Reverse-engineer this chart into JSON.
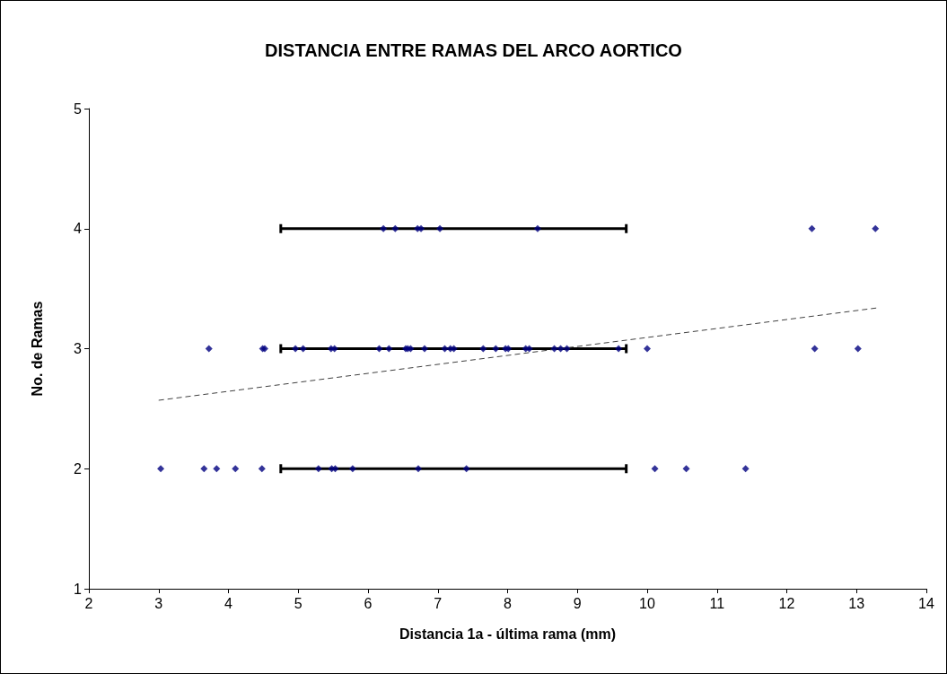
{
  "chart_data": {
    "type": "scatter",
    "title": "DISTANCIA ENTRE RAMAS DEL ARCO AORTICO",
    "xlabel": "Distancia 1a - última rama (mm)",
    "ylabel": "No. de Ramas",
    "xlim": [
      2,
      14
    ],
    "xticks": [
      2,
      3,
      4,
      5,
      6,
      7,
      8,
      9,
      10,
      11,
      12,
      13,
      14
    ],
    "ylim": [
      1,
      5
    ],
    "yticks": [
      1,
      2,
      3,
      4,
      5
    ],
    "marker": "diamond",
    "series": [
      {
        "color": "#000080",
        "x": [
          6.22,
          6.39,
          6.71,
          6.76,
          7.03,
          8.43,
          12.36,
          13.27
        ],
        "values": [
          4,
          4,
          4,
          4,
          4,
          4,
          4,
          4
        ],
        "xerrors": [
          null,
          null,
          null,
          null,
          [
            4.75,
            9.7
          ],
          null,
          null,
          null
        ]
      },
      {
        "color": "#000080",
        "x": [
          3.72,
          4.49,
          4.52,
          4.96,
          5.07,
          5.47,
          5.52,
          6.16,
          6.3,
          6.54,
          6.57,
          6.61,
          6.81,
          7.1,
          7.18,
          7.23,
          7.65,
          7.83,
          7.97,
          8.01,
          8.26,
          8.31,
          8.67,
          8.76,
          8.85,
          9.59,
          10.0,
          12.4,
          13.02
        ],
        "values": [
          3,
          3,
          3,
          3,
          3,
          3,
          3,
          3,
          3,
          3,
          3,
          3,
          3,
          3,
          3,
          3,
          3,
          3,
          3,
          3,
          3,
          3,
          3,
          3,
          3,
          3,
          3,
          3,
          3
        ],
        "xerrors": [
          null,
          null,
          null,
          null,
          null,
          null,
          null,
          null,
          null,
          null,
          null,
          null,
          null,
          null,
          null,
          [
            4.75,
            9.7
          ],
          null,
          null,
          null,
          null,
          null,
          null,
          null,
          null,
          null,
          null,
          null,
          null,
          null
        ]
      },
      {
        "color": "#000080",
        "x": [
          3.03,
          3.65,
          3.83,
          4.1,
          4.48,
          5.29,
          5.48,
          5.53,
          5.78,
          6.72,
          7.41,
          10.11,
          10.56,
          11.41
        ],
        "values": [
          2,
          2,
          2,
          2,
          2,
          2,
          2,
          2,
          2,
          2,
          2,
          2,
          2,
          2
        ],
        "xerrors": [
          null,
          null,
          null,
          null,
          null,
          null,
          null,
          null,
          null,
          [
            4.75,
            9.7
          ],
          null,
          null,
          null,
          null
        ]
      },
      {
        "type": "line",
        "color": "#404040",
        "line_style": "dashed",
        "marker": "none",
        "x": [
          3,
          13.3
        ],
        "values": [
          2.57,
          3.34
        ]
      }
    ]
  }
}
